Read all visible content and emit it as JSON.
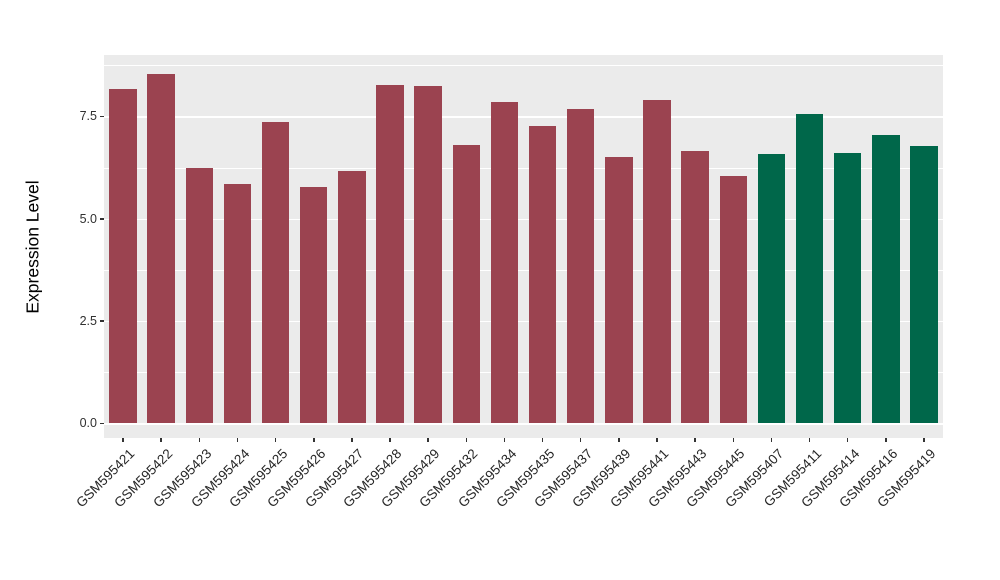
{
  "chart_data": {
    "type": "bar",
    "title": "",
    "xlabel": "",
    "ylabel": "Expression Level",
    "ylim": [
      0,
      9.0
    ],
    "yticks": [
      0.0,
      2.5,
      5.0,
      7.5
    ],
    "ytick_labels": [
      "0.0",
      "2.5",
      "5.0",
      "7.5"
    ],
    "yticks_minor": [
      1.25,
      3.75,
      6.25,
      8.75
    ],
    "grid": true,
    "legend_position": "none",
    "categories": [
      "GSM595421",
      "GSM595422",
      "GSM595423",
      "GSM595424",
      "GSM595425",
      "GSM595426",
      "GSM595427",
      "GSM595428",
      "GSM595429",
      "GSM595432",
      "GSM595434",
      "GSM595435",
      "GSM595437",
      "GSM595439",
      "GSM595441",
      "GSM595443",
      "GSM595445",
      "GSM595407",
      "GSM595411",
      "GSM595414",
      "GSM595416",
      "GSM595419"
    ],
    "values": [
      8.17,
      8.54,
      6.23,
      5.86,
      7.36,
      5.77,
      6.17,
      8.27,
      8.25,
      6.8,
      7.85,
      7.27,
      7.68,
      6.51,
      7.91,
      6.66,
      6.04,
      6.57,
      7.57,
      6.61,
      7.05,
      6.78
    ],
    "groups": [
      "group1",
      "group1",
      "group1",
      "group1",
      "group1",
      "group1",
      "group1",
      "group1",
      "group1",
      "group1",
      "group1",
      "group1",
      "group1",
      "group1",
      "group1",
      "group1",
      "group1",
      "group2",
      "group2",
      "group2",
      "group2",
      "group2"
    ],
    "group_colors": {
      "group1": "#9B4350",
      "group2": "#00674A"
    }
  },
  "style": {
    "panel_background": "#EBEBEB",
    "grid_color": "#FFFFFF",
    "axis_text_color": "#303030",
    "axis_title_color": "#000000",
    "page_background": "#FFFFFF"
  }
}
